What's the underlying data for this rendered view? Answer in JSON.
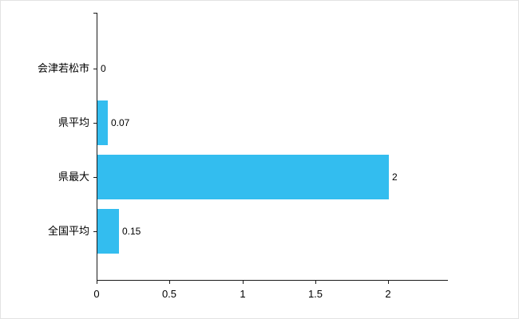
{
  "chart_data": {
    "type": "bar",
    "orientation": "horizontal",
    "title": "",
    "categories": [
      "会津若松市",
      "県平均",
      "県最大",
      "全国平均"
    ],
    "values": [
      0,
      0.07,
      2,
      0.15
    ],
    "value_labels": [
      "0",
      "0.07",
      "2",
      "0.15"
    ],
    "x_ticks": [
      0,
      0.5,
      1,
      1.5,
      2
    ],
    "x_tick_labels": [
      "0",
      "0.5",
      "1",
      "1.5",
      "2"
    ],
    "xlim": [
      0,
      2.41
    ],
    "grid": false,
    "legend": "none",
    "colors": {
      "bar": "#33bdef",
      "axis": "#1a1a1a",
      "text": "#000000",
      "background": "#ffffff"
    }
  }
}
